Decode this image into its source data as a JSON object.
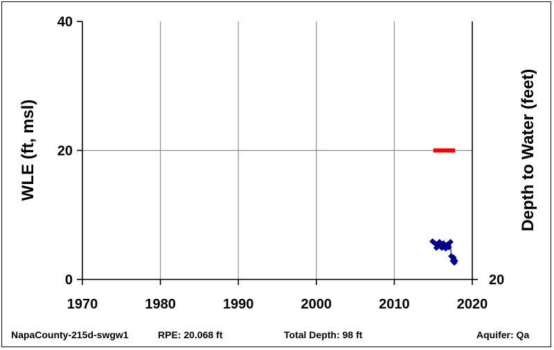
{
  "chart_data": {
    "type": "scatter",
    "ylabel": "WLE (ft, msl)",
    "ylabel_right": "Depth to Water (feet)",
    "xlim": [
      1970,
      2020
    ],
    "ylim": [
      0,
      40
    ],
    "x_ticks": [
      1970,
      1980,
      1990,
      2000,
      2010,
      2020
    ],
    "y_ticks": [
      0,
      20,
      40
    ],
    "right_ticks": [
      {
        "label": "20",
        "wle": 0
      }
    ],
    "grid": true,
    "reference_line": {
      "y": 20,
      "x": [
        2015.0,
        2017.8
      ],
      "color": "#ff0000"
    },
    "series": [
      {
        "color": "#00008b",
        "marker": "diamond",
        "x": [
          2014.9,
          2015.2,
          2015.4,
          2015.5,
          2015.7,
          2015.8,
          2016.0,
          2016.1,
          2016.3,
          2016.5,
          2016.6,
          2016.8,
          2017.0,
          2017.2,
          2017.3,
          2017.5,
          2017.6,
          2017.7,
          2017.8
        ],
        "y": [
          5.9,
          5.6,
          4.9,
          5.5,
          5.2,
          5.8,
          5.3,
          4.9,
          5.6,
          5.1,
          4.8,
          5.4,
          5.0,
          5.8,
          3.6,
          2.9,
          3.4,
          2.6,
          2.9
        ]
      }
    ]
  },
  "footer": {
    "well_name": "NapaCounty-215d-swgw1",
    "rpe": "RPE: 20.068 ft",
    "total_depth": "Total Depth: 98 ft",
    "aquifer": "Aquifer: Qa"
  }
}
